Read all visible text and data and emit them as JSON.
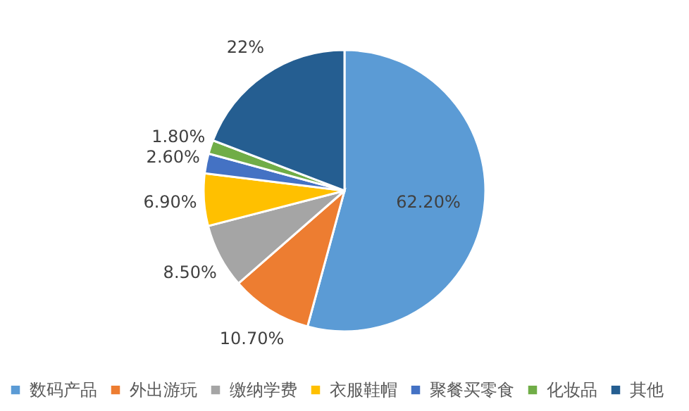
{
  "chart_data": {
    "type": "pie",
    "categories": [
      "数码产品",
      "外出游玩",
      "缴纳学费",
      "衣服鞋帽",
      "聚餐买零食",
      "化妆品",
      "其他"
    ],
    "values": [
      62.2,
      10.7,
      8.5,
      6.9,
      2.6,
      1.8,
      22
    ],
    "value_labels": [
      "62.20%",
      "10.70%",
      "8.50%",
      "6.90%",
      "2.60%",
      "1.80%",
      "22%"
    ],
    "colors": [
      "#5b9bd5",
      "#ed7d31",
      "#a5a5a5",
      "#ffc000",
      "#4472c4",
      "#70ad47",
      "#255e91"
    ],
    "legend": "bottom"
  }
}
